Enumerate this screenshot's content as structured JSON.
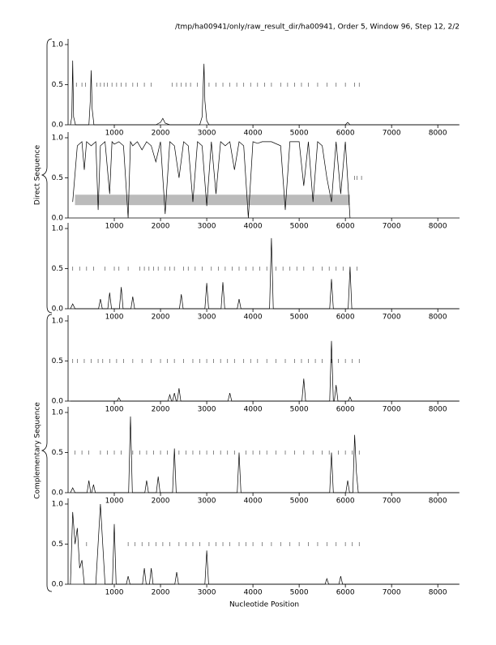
{
  "title": "/tmp/ha00941/only/raw_result_dir/ha00941, Order 5, Window 96, Step 12, 2/2",
  "xlabel": "Nucleotide Position",
  "groups": [
    "Direct Sequence",
    "Complementary Sequence"
  ],
  "chart_data": [
    {
      "type": "line",
      "color": "#000000",
      "marker_color": "#555555",
      "marker_y": 0.5,
      "xlim": [
        0,
        8470
      ],
      "ylim": [
        0,
        1
      ],
      "xticks": [
        1000,
        2000,
        3000,
        4000,
        5000,
        6000,
        7000,
        8000
      ],
      "yticks": [
        {
          "value": 0,
          "label": "0.0"
        },
        {
          "value": 0.5,
          "label": "0.5"
        },
        {
          "value": 1,
          "label": "1.0"
        }
      ],
      "x": [
        50,
        80,
        100,
        120,
        160,
        450,
        480,
        500,
        520,
        560,
        1900,
        2000,
        2050,
        2100,
        2200,
        2850,
        2900,
        2940,
        2960,
        3000,
        3050,
        4500,
        6000,
        6050,
        6100,
        8450
      ],
      "values": [
        0,
        0.1,
        0.8,
        0.1,
        0,
        0,
        0.3,
        0.68,
        0.2,
        0,
        0,
        0.03,
        0.08,
        0.02,
        0,
        0,
        0.1,
        0.76,
        0.3,
        0.05,
        0,
        0,
        0,
        0.03,
        0,
        0
      ],
      "markers": [
        180,
        300,
        380,
        620,
        700,
        780,
        850,
        950,
        1050,
        1150,
        1250,
        1400,
        1500,
        1650,
        1800,
        2250,
        2350,
        2450,
        2550,
        2650,
        2800,
        3050,
        3200,
        3350,
        3500,
        3650,
        3800,
        3950,
        4100,
        4250,
        4400,
        4600,
        4750,
        4900,
        5050,
        5200,
        5400,
        5600,
        5800,
        6000,
        6200,
        6300
      ]
    },
    {
      "type": "line",
      "color": "#000000",
      "marker_color": "#555555",
      "marker_y": 0.5,
      "xlim": [
        0,
        8470
      ],
      "ylim": [
        0,
        1
      ],
      "xticks": [
        1000,
        2000,
        3000,
        4000,
        5000,
        6000,
        7000,
        8000
      ],
      "yticks": [
        {
          "value": 0,
          "label": "0.0"
        },
        {
          "value": 0.5,
          "label": "0.5"
        },
        {
          "value": 1,
          "label": "1.0"
        }
      ],
      "band": {
        "x": [
          150,
          6100
        ],
        "y": [
          0.16,
          0.29
        ],
        "color": "#bbbbbb"
      },
      "x": [
        100,
        200,
        300,
        350,
        400,
        500,
        600,
        650,
        700,
        800,
        900,
        950,
        1000,
        1100,
        1200,
        1300,
        1350,
        1400,
        1500,
        1600,
        1700,
        1800,
        1900,
        2000,
        2100,
        2200,
        2300,
        2400,
        2500,
        2600,
        2700,
        2800,
        2900,
        3000,
        3100,
        3200,
        3300,
        3400,
        3500,
        3600,
        3700,
        3800,
        3900,
        4000,
        4100,
        4200,
        4400,
        4600,
        4700,
        4800,
        5000,
        5100,
        5200,
        5300,
        5400,
        5500,
        5600,
        5700,
        5800,
        5900,
        6000,
        6100
      ],
      "values": [
        0.2,
        0.9,
        0.95,
        0.6,
        0.95,
        0.9,
        0.95,
        0.1,
        0.9,
        0.95,
        0.3,
        0.95,
        0.92,
        0.95,
        0.9,
        0,
        0.95,
        0.9,
        0.95,
        0.85,
        0.95,
        0.9,
        0.7,
        0.95,
        0.05,
        0.95,
        0.9,
        0.5,
        0.95,
        0.9,
        0.2,
        0.95,
        0.9,
        0.15,
        0.95,
        0.3,
        0.95,
        0.9,
        0.95,
        0.6,
        0.95,
        0.9,
        0,
        0.95,
        0.93,
        0.95,
        0.95,
        0.9,
        0.1,
        0.95,
        0.95,
        0.4,
        0.95,
        0.2,
        0.95,
        0.9,
        0.5,
        0.2,
        0.95,
        0.3,
        0.95,
        0
      ],
      "markers": [
        6200,
        6250,
        6350
      ]
    },
    {
      "type": "line",
      "color": "#000000",
      "marker_color": "#555555",
      "marker_y": 0.5,
      "xlim": [
        0,
        8470
      ],
      "ylim": [
        0,
        1
      ],
      "xticks": [
        1000,
        2000,
        3000,
        4000,
        5000,
        6000,
        7000,
        8000
      ],
      "yticks": [
        {
          "value": 0,
          "label": "0.0"
        },
        {
          "value": 0.5,
          "label": "0.5"
        },
        {
          "value": 1,
          "label": "1.0"
        }
      ],
      "x": [
        50,
        100,
        150,
        660,
        700,
        740,
        860,
        900,
        940,
        1110,
        1150,
        1190,
        1360,
        1400,
        1440,
        2410,
        2450,
        2490,
        2960,
        3000,
        3040,
        3310,
        3350,
        3390,
        3660,
        3700,
        3740,
        4360,
        4400,
        4440,
        5660,
        5700,
        5740,
        6060,
        6100,
        6140,
        8450
      ],
      "values": [
        0,
        0.06,
        0,
        0,
        0.12,
        0,
        0,
        0.2,
        0,
        0,
        0.27,
        0,
        0,
        0.15,
        0,
        0,
        0.18,
        0,
        0,
        0.32,
        0,
        0,
        0.33,
        0,
        0,
        0.12,
        0,
        0,
        0.88,
        0,
        0,
        0.37,
        0,
        0,
        0.52,
        0,
        0
      ],
      "markers": [
        100,
        250,
        400,
        550,
        800,
        1000,
        1100,
        1300,
        1550,
        1650,
        1750,
        1850,
        1950,
        2100,
        2200,
        2300,
        2500,
        2600,
        2750,
        2900,
        3100,
        3250,
        3400,
        3550,
        3700,
        3850,
        4000,
        4150,
        4300,
        4500,
        4650,
        4800,
        4950,
        5100,
        5300,
        5500,
        5650,
        5800,
        5950,
        6100,
        6250
      ]
    },
    {
      "type": "line",
      "color": "#000000",
      "marker_color": "#555555",
      "marker_y": 0.5,
      "xlim": [
        0,
        8470
      ],
      "ylim": [
        0,
        1
      ],
      "xticks": [
        1000,
        2000,
        3000,
        4000,
        5000,
        6000,
        7000,
        8000
      ],
      "yticks": [
        {
          "value": 0,
          "label": "0.0"
        },
        {
          "value": 0.5,
          "label": "0.5"
        },
        {
          "value": 1,
          "label": "1.0"
        }
      ],
      "x": [
        50,
        1060,
        1100,
        1140,
        2160,
        2200,
        2240,
        2260,
        2300,
        2340,
        2360,
        2400,
        2440,
        3460,
        3500,
        3540,
        5060,
        5100,
        5140,
        5660,
        5700,
        5740,
        5760,
        5800,
        5840,
        6060,
        6100,
        6140,
        8450
      ],
      "values": [
        0,
        0,
        0.04,
        0,
        0,
        0.08,
        0,
        0,
        0.1,
        0,
        0,
        0.16,
        0,
        0,
        0.1,
        0,
        0,
        0.28,
        0,
        0,
        0.75,
        0,
        0,
        0.2,
        0,
        0,
        0.05,
        0,
        0
      ],
      "markers": [
        100,
        200,
        350,
        500,
        650,
        750,
        900,
        1050,
        1200,
        1400,
        1600,
        1800,
        2000,
        2150,
        2300,
        2500,
        2700,
        2850,
        3000,
        3150,
        3300,
        3450,
        3600,
        3800,
        3950,
        4100,
        4300,
        4500,
        4700,
        4900,
        5050,
        5200,
        5350,
        5500,
        5700,
        5850,
        6000,
        6150,
        6300
      ]
    },
    {
      "type": "line",
      "color": "#000000",
      "marker_color": "#555555",
      "marker_y": 0.5,
      "xlim": [
        0,
        8470
      ],
      "ylim": [
        0,
        1
      ],
      "xticks": [
        1000,
        2000,
        3000,
        4000,
        5000,
        6000,
        7000,
        8000
      ],
      "yticks": [
        {
          "value": 0,
          "label": "0.0"
        },
        {
          "value": 0.5,
          "label": "0.5"
        },
        {
          "value": 1,
          "label": "1.0"
        }
      ],
      "x": [
        50,
        100,
        150,
        410,
        450,
        490,
        510,
        550,
        590,
        1310,
        1350,
        1390,
        1660,
        1700,
        1740,
        1910,
        1950,
        1990,
        2260,
        2300,
        2340,
        3660,
        3700,
        3740,
        5660,
        5700,
        5740,
        6010,
        6050,
        6090,
        6160,
        6200,
        6240,
        6280,
        8450
      ],
      "values": [
        0,
        0.06,
        0,
        0,
        0.15,
        0,
        0,
        0.1,
        0,
        0,
        0.95,
        0,
        0,
        0.15,
        0,
        0,
        0.2,
        0,
        0,
        0.55,
        0,
        0,
        0.5,
        0,
        0,
        0.5,
        0,
        0,
        0.15,
        0,
        0,
        0.72,
        0.25,
        0,
        0
      ],
      "markers": [
        150,
        300,
        450,
        700,
        850,
        1000,
        1150,
        1400,
        1550,
        1700,
        1850,
        2000,
        2150,
        2400,
        2550,
        2700,
        2850,
        3000,
        3150,
        3300,
        3450,
        3600,
        3850,
        4000,
        4150,
        4300,
        4500,
        4700,
        4900,
        5100,
        5300,
        5500,
        5650,
        5850,
        6000,
        6150,
        6300
      ]
    },
    {
      "type": "line",
      "color": "#000000",
      "marker_color": "#555555",
      "marker_y": 0.5,
      "xlim": [
        0,
        8470
      ],
      "ylim": [
        0,
        1
      ],
      "xticks": [
        1000,
        2000,
        3000,
        4000,
        5000,
        6000,
        7000,
        8000
      ],
      "yticks": [
        {
          "value": 0,
          "label": "0.0"
        },
        {
          "value": 0.5,
          "label": "0.5"
        },
        {
          "value": 1,
          "label": "1.0"
        }
      ],
      "x": [
        50,
        100,
        150,
        200,
        250,
        300,
        350,
        600,
        700,
        800,
        960,
        1000,
        1040,
        1260,
        1300,
        1340,
        1610,
        1650,
        1690,
        1760,
        1800,
        1840,
        2310,
        2350,
        2390,
        2960,
        3000,
        3040,
        5560,
        5600,
        5640,
        5860,
        5900,
        5940,
        8450
      ],
      "values": [
        0,
        0.9,
        0.5,
        0.7,
        0.2,
        0.3,
        0,
        0,
        1.0,
        0,
        0,
        0.75,
        0,
        0,
        0.1,
        0,
        0,
        0.2,
        0,
        0,
        0.2,
        0,
        0,
        0.15,
        0,
        0,
        0.42,
        0,
        0,
        0.07,
        0,
        0,
        0.1,
        0,
        0
      ],
      "markers": [
        400,
        1300,
        1450,
        1600,
        1750,
        1900,
        2050,
        2200,
        2400,
        2550,
        2700,
        2850,
        3050,
        3200,
        3350,
        3500,
        3700,
        3850,
        4000,
        4200,
        4400,
        4600,
        4800,
        5000,
        5200,
        5400,
        5600,
        5800,
        6000,
        6150,
        6300
      ]
    }
  ]
}
